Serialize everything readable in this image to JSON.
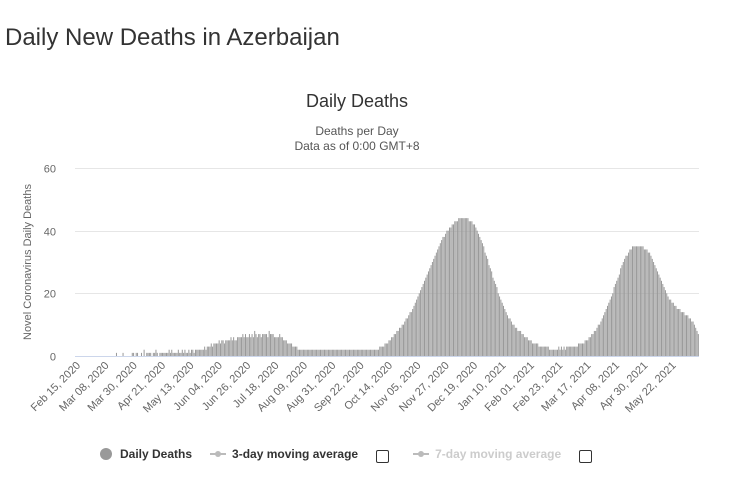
{
  "page": {
    "title": "Daily New Deaths in Azerbaijan"
  },
  "chart_data": {
    "type": "bar",
    "title": "Daily Deaths",
    "subtitle_line1": "Deaths per Day",
    "subtitle_line2": "Data as of 0:00 GMT+8",
    "ylabel": "Novel Coronavirus Daily Deaths",
    "ylim": [
      0,
      60
    ],
    "yticks": [
      "0",
      "20",
      "40",
      "60"
    ],
    "grid": true,
    "color": "#999999",
    "x_tick_labels": [
      "Feb 15, 2020",
      "Mar 08, 2020",
      "Mar 30, 2020",
      "Apr 21, 2020",
      "May 13, 2020",
      "Jun 04, 2020",
      "Jun 26, 2020",
      "Jul 18, 2020",
      "Aug 09, 2020",
      "Aug 31, 2020",
      "Sep 22, 2020",
      "Oct 14, 2020",
      "Nov 05, 2020",
      "Nov 27, 2020",
      "Dec 19, 2020",
      "Jan 10, 2021",
      "Feb 01, 2021",
      "Feb 23, 2021",
      "Mar 17, 2021",
      "Apr 08, 2021",
      "Apr 30, 2021",
      "May 22, 2021"
    ],
    "x_start": "Feb 15, 2020",
    "x_end": "May 29, 2021",
    "values": [
      0,
      0,
      0,
      0,
      0,
      0,
      0,
      0,
      0,
      0,
      0,
      0,
      0,
      0,
      0,
      0,
      0,
      0,
      0,
      0,
      0,
      0,
      0,
      0,
      0,
      0,
      0,
      0,
      0,
      0,
      0,
      1,
      0,
      0,
      0,
      0,
      1,
      0,
      0,
      0,
      0,
      0,
      0,
      1,
      1,
      0,
      1,
      1,
      0,
      0,
      1,
      0,
      2,
      0,
      1,
      1,
      1,
      1,
      0,
      1,
      1,
      2,
      1,
      0,
      1,
      1,
      1,
      1,
      1,
      1,
      1,
      2,
      1,
      2,
      1,
      1,
      1,
      1,
      2,
      1,
      1,
      2,
      1,
      2,
      1,
      1,
      2,
      1,
      2,
      2,
      1,
      2,
      2,
      2,
      2,
      2,
      2,
      2,
      3,
      2,
      3,
      3,
      3,
      4,
      3,
      4,
      4,
      4,
      4,
      5,
      4,
      5,
      5,
      4,
      5,
      5,
      5,
      5,
      6,
      5,
      6,
      5,
      5,
      6,
      6,
      6,
      6,
      7,
      6,
      7,
      6,
      6,
      7,
      6,
      7,
      6,
      8,
      7,
      6,
      7,
      7,
      6,
      7,
      7,
      7,
      7,
      6,
      8,
      7,
      7,
      7,
      6,
      6,
      6,
      6,
      7,
      6,
      6,
      5,
      5,
      5,
      4,
      4,
      4,
      4,
      3,
      3,
      3,
      3,
      2,
      2,
      2,
      2,
      2,
      2,
      2,
      2,
      2,
      2,
      2,
      2,
      2,
      2,
      2,
      2,
      2,
      2,
      2,
      2,
      2,
      2,
      2,
      2,
      2,
      2,
      2,
      2,
      2,
      2,
      2,
      2,
      2,
      2,
      2,
      2,
      2,
      2,
      2,
      2,
      2,
      2,
      2,
      2,
      2,
      2,
      2,
      2,
      2,
      2,
      2,
      2,
      2,
      2,
      2,
      2,
      2,
      2,
      2,
      2,
      2,
      2,
      3,
      3,
      3,
      3,
      4,
      4,
      4,
      5,
      5,
      6,
      6,
      7,
      7,
      8,
      8,
      9,
      9,
      10,
      10,
      11,
      12,
      12,
      13,
      14,
      14,
      15,
      16,
      17,
      18,
      19,
      20,
      21,
      22,
      23,
      24,
      25,
      26,
      27,
      28,
      29,
      30,
      31,
      32,
      33,
      34,
      35,
      36,
      37,
      38,
      38,
      39,
      40,
      40,
      41,
      41,
      42,
      42,
      43,
      43,
      43,
      44,
      44,
      44,
      44,
      44,
      44,
      44,
      44,
      43,
      43,
      43,
      42,
      42,
      41,
      40,
      39,
      38,
      37,
      36,
      35,
      33,
      32,
      31,
      29,
      28,
      27,
      25,
      24,
      23,
      22,
      20,
      19,
      18,
      17,
      16,
      15,
      14,
      13,
      12,
      12,
      11,
      10,
      10,
      9,
      9,
      8,
      8,
      8,
      7,
      7,
      6,
      6,
      6,
      5,
      5,
      5,
      4,
      4,
      4,
      4,
      4,
      3,
      3,
      3,
      3,
      3,
      3,
      3,
      3,
      2,
      2,
      2,
      2,
      2,
      2,
      2,
      3,
      2,
      3,
      2,
      3,
      2,
      3,
      3,
      3,
      3,
      3,
      3,
      3,
      3,
      3,
      4,
      4,
      4,
      4,
      4,
      5,
      5,
      5,
      6,
      6,
      7,
      7,
      8,
      8,
      9,
      10,
      10,
      11,
      12,
      13,
      14,
      15,
      16,
      17,
      18,
      19,
      20,
      22,
      23,
      24,
      25,
      26,
      28,
      29,
      30,
      31,
      32,
      32,
      33,
      34,
      34,
      35,
      35,
      35,
      35,
      35,
      35,
      35,
      35,
      35,
      34,
      34,
      34,
      33,
      33,
      32,
      31,
      30,
      29,
      28,
      27,
      26,
      25,
      24,
      23,
      22,
      21,
      20,
      19,
      18,
      18,
      17,
      17,
      16,
      16,
      15,
      15,
      15,
      14,
      14,
      14,
      13,
      13,
      13,
      12,
      12,
      11,
      11,
      10,
      9,
      8,
      7
    ]
  },
  "legend": {
    "daily_label": "Daily Deaths",
    "ma3_label": "3-day moving average",
    "ma7_label": "7-day moving average"
  }
}
